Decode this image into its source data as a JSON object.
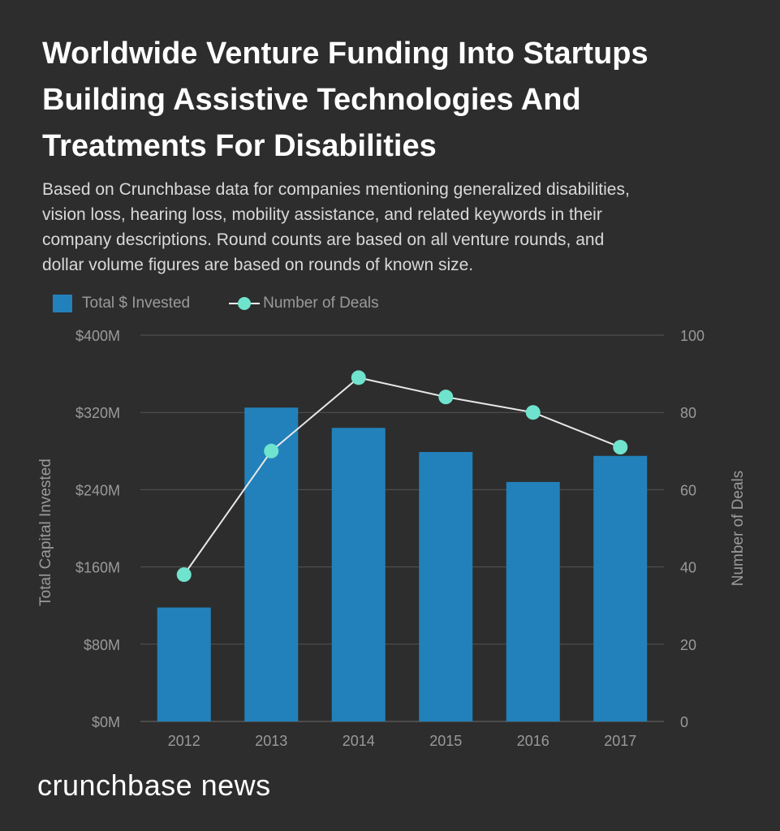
{
  "header": {
    "title_lines": [
      "Worldwide Venture Funding Into Startups",
      "Building Assistive Technologies And",
      "Treatments For Disabilities"
    ],
    "subtitle_lines": [
      "Based on Crunchbase data for companies mentioning generalized disabilities,",
      "vision loss, hearing loss, mobility assistance, and related keywords in their",
      "company descriptions. Round counts are based on all venture rounds, and",
      "dollar volume figures are based on rounds of known size."
    ]
  },
  "colors": {
    "bar": "#2281ba",
    "dot": "#6fe3cd",
    "line": "#e8e8e8",
    "grid": "#555555",
    "axis_text": "#9a9a9a",
    "background": "#2d2d2d"
  },
  "chart_data": {
    "type": "bar",
    "title": "Worldwide Venture Funding Into Startups Building Assistive Technologies And Treatments For Disabilities",
    "categories": [
      "2012",
      "2013",
      "2014",
      "2015",
      "2016",
      "2017"
    ],
    "series": [
      {
        "name": "Total $ Invested",
        "type": "bar",
        "axis": "left",
        "values": [
          118,
          325,
          304,
          279,
          248,
          275
        ]
      },
      {
        "name": "Number of Deals",
        "type": "line",
        "axis": "right",
        "values": [
          38,
          70,
          89,
          84,
          80,
          71
        ]
      }
    ],
    "left_axis": {
      "label": "Total Capital Invested",
      "range": [
        0,
        400
      ],
      "ticks": [
        0,
        80,
        160,
        240,
        320,
        400
      ],
      "tick_labels": [
        "$0M",
        "$80M",
        "$160M",
        "$240M",
        "$320M",
        "$400M"
      ]
    },
    "right_axis": {
      "label": "Number of Deals",
      "range": [
        0,
        100
      ],
      "ticks": [
        0,
        20,
        40,
        60,
        80,
        100
      ],
      "tick_labels": [
        "0",
        "20",
        "40",
        "60",
        "80",
        "100"
      ]
    },
    "grid": true,
    "legend": "top-left"
  },
  "footer": {
    "brand": "crunchbase news"
  }
}
